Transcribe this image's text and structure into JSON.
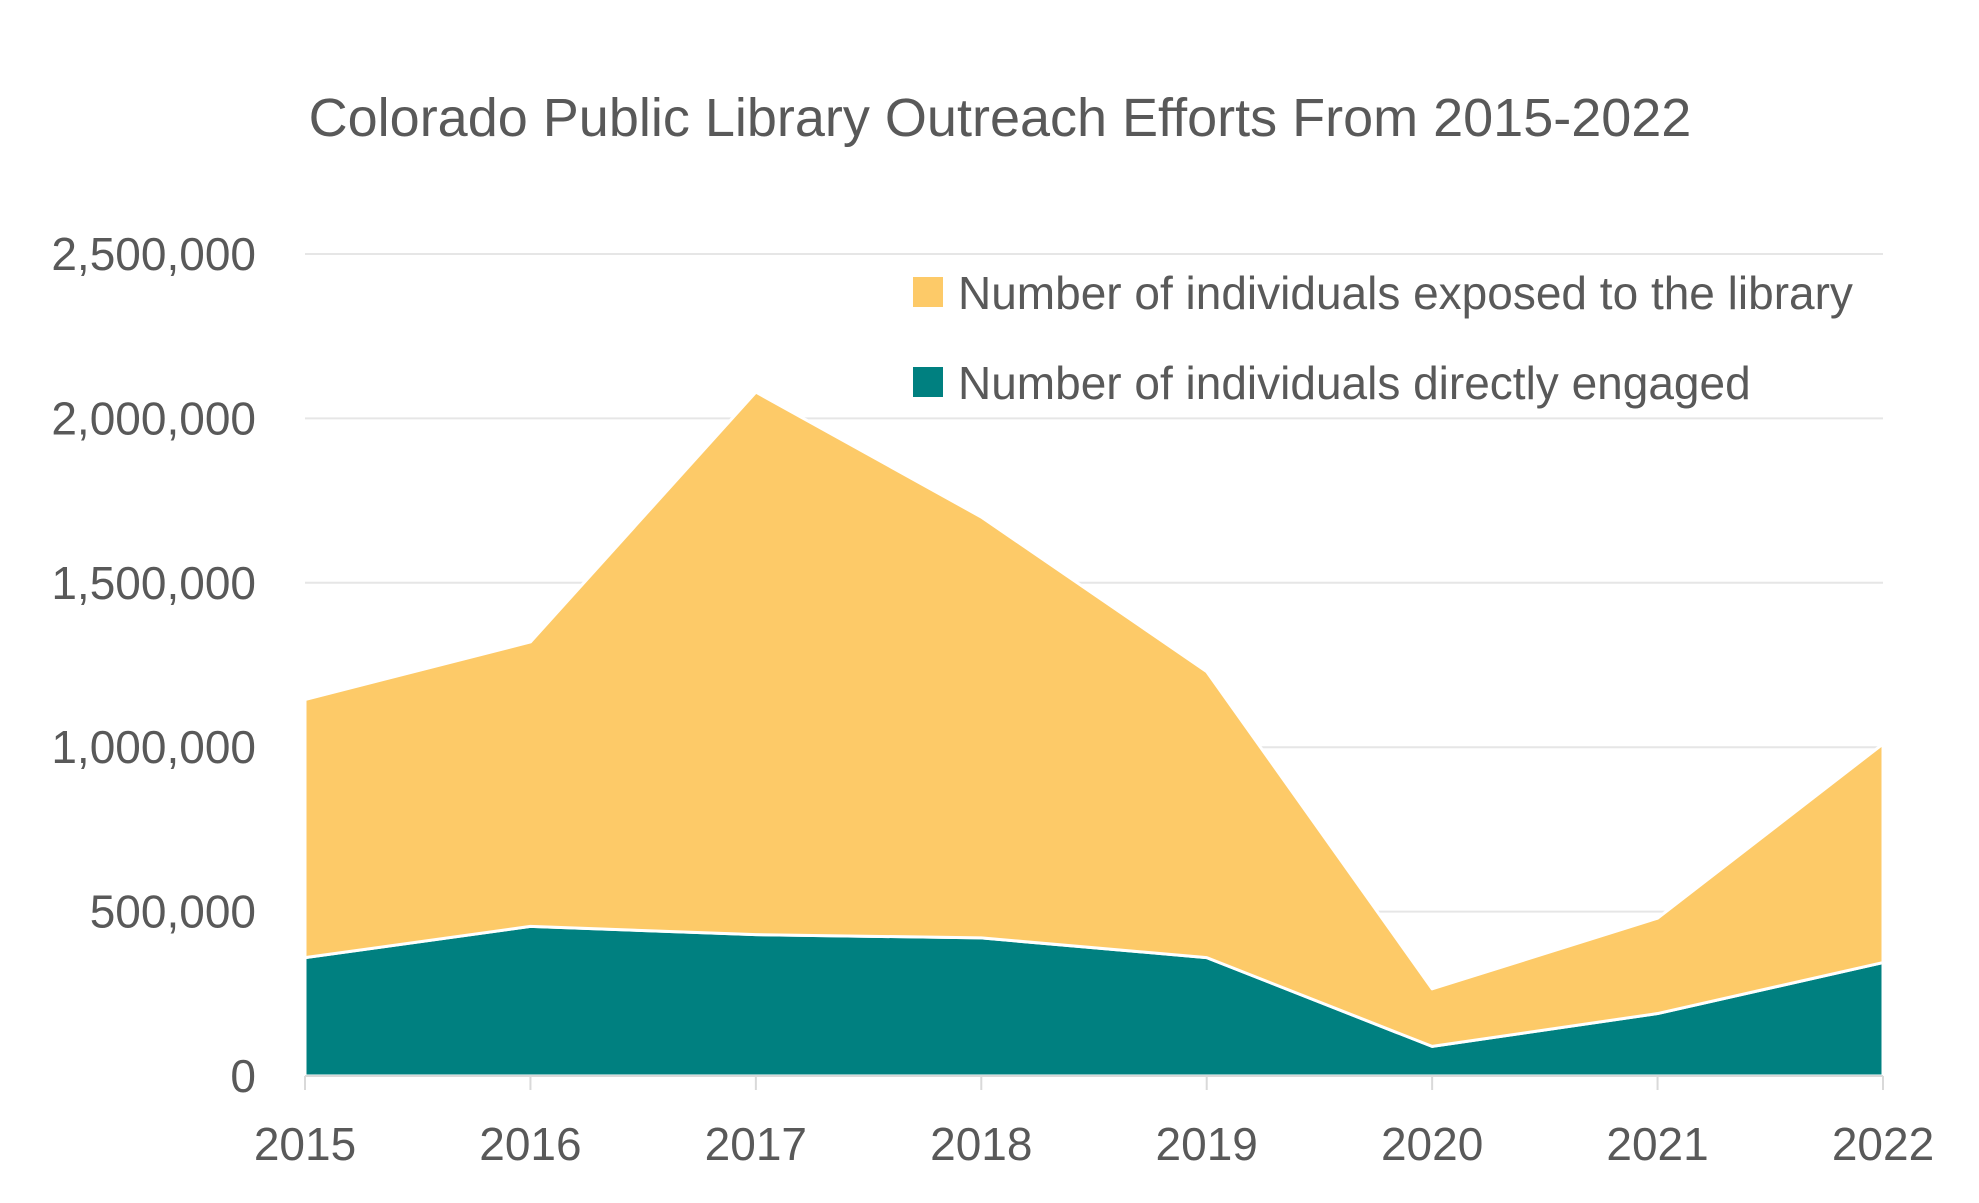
{
  "chart_data": {
    "type": "area",
    "stacked": true,
    "title": "Colorado Public Library Outreach Efforts From 2015-2022",
    "xlabel": "",
    "ylabel": "",
    "categories": [
      "2015",
      "2016",
      "2017",
      "2018",
      "2019",
      "2020",
      "2021",
      "2022"
    ],
    "ylim": [
      0,
      2500000
    ],
    "yticks": [
      0,
      500000,
      1000000,
      1500000,
      2000000,
      2500000
    ],
    "ytick_labels": [
      "0",
      "500,000",
      "1,000,000",
      "1,500,000",
      "2,000,000",
      "2,500,000"
    ],
    "grid": true,
    "legend_position": "top-right",
    "series": [
      {
        "name": "Number of individuals directly engaged",
        "color": "#008080",
        "values": [
          360000,
          455000,
          430000,
          420000,
          360000,
          90000,
          190000,
          345000
        ]
      },
      {
        "name": "Number of individuals exposed to the library",
        "color": "#FDCA68",
        "values": [
          785000,
          865000,
          1650000,
          1280000,
          870000,
          175000,
          290000,
          665000
        ]
      }
    ],
    "totals": [
      1145000,
      1320000,
      2080000,
      1700000,
      1230000,
      265000,
      480000,
      1010000
    ]
  }
}
